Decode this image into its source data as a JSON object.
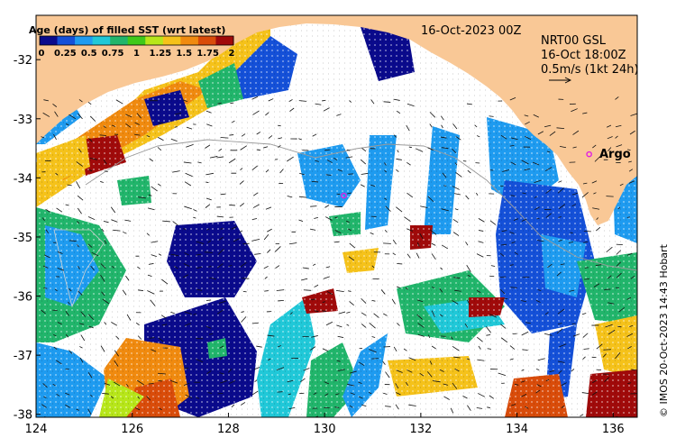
{
  "map": {
    "colorbar_title": "Age (days) of filled SST (wrt latest)",
    "colorbar_ticks": [
      "0",
      "0.25",
      "0.5",
      "0.75",
      "1",
      "1.25",
      "1.5",
      "1.75",
      "2"
    ],
    "colorbar_colors": [
      "#0a0a8c",
      "#1450d8",
      "#1e9bf0",
      "#20c8d8",
      "#21b56b",
      "#3fc91a",
      "#b7e61a",
      "#f5c21a",
      "#f08a0f",
      "#d94c0a",
      "#a00a0a"
    ],
    "date_label": "16-Oct-2023 00Z",
    "current_label_line1": "NRT00 GSL",
    "current_label_line2": "16-Oct 18:00Z",
    "scale_label": "0.5m/s (1kt 24h)",
    "argo_label": "Argo",
    "credit": "© IMOS 20-Oct-2023 14:43 Hobart",
    "x_ticks": [
      "124",
      "126",
      "128",
      "130",
      "132",
      "134",
      "136"
    ],
    "y_ticks": [
      "-32",
      "-33",
      "-34",
      "-35",
      "-36",
      "-37",
      "-38"
    ],
    "x_values": [
      124,
      126,
      128,
      130,
      132,
      134,
      136
    ],
    "y_values": [
      -32,
      -33,
      -34,
      -35,
      -36,
      -37,
      -38
    ],
    "lon_range": [
      124,
      136.5
    ],
    "lat_range": [
      -38.05,
      -31.25
    ],
    "land_color": "#f9c896",
    "argo_color": "#e020e0",
    "argo_floats": [
      {
        "lon": 135.5,
        "lat": -33.6
      },
      {
        "lon": 130.4,
        "lat": -34.3
      }
    ]
  }
}
